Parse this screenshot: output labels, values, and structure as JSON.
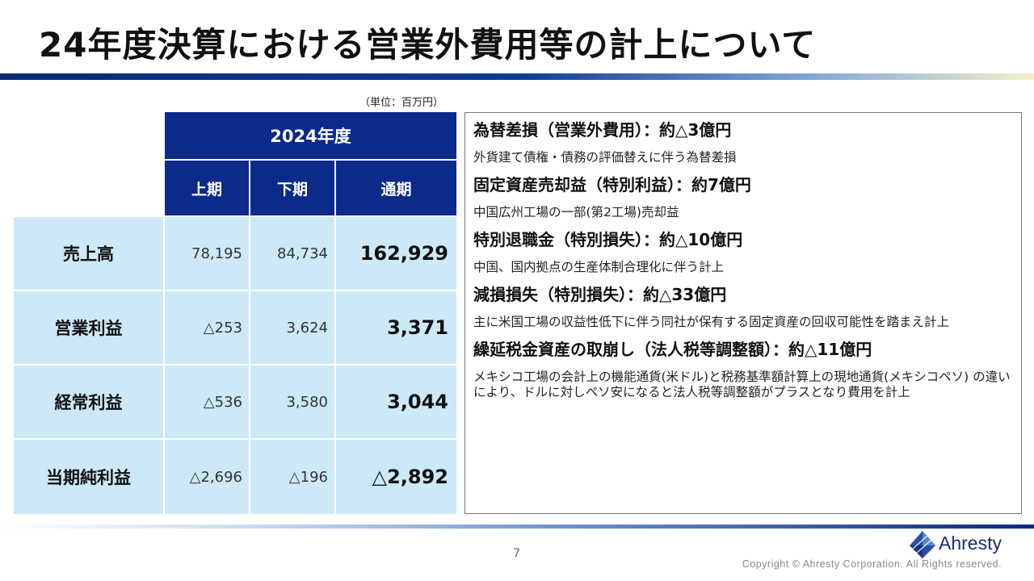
{
  "title": "24年度決算における営業外費用等の計上について",
  "unit_note": "（単位：百万円）",
  "table": {
    "year_header": "2024年度",
    "columns": [
      "上期",
      "下期",
      "通期"
    ],
    "rows": [
      {
        "label": "売上高",
        "h1": "78,195",
        "h2": "84,734",
        "total": "162,929"
      },
      {
        "label": "営業利益",
        "h1": "△253",
        "h2": "3,624",
        "total": "3,371"
      },
      {
        "label": "経常利益",
        "h1": "△536",
        "h2": "3,580",
        "total": "3,044"
      },
      {
        "label": "当期純利益",
        "h1": "△2,696",
        "h2": "△196",
        "total": "△2,892"
      }
    ]
  },
  "items": [
    {
      "head": "為替差損（営業外費用）：約△3億円",
      "desc": "外貨建て債権・債務の評価替えに伴う為替差損"
    },
    {
      "head": "固定資産売却益（特別利益）：約7億円",
      "desc": "中国広州工場の一部(第2工場)売却益"
    },
    {
      "head": "特別退職金（特別損失）：約△10億円",
      "desc": "中国、国内拠点の生産体制合理化に伴う計上"
    },
    {
      "head": "減損損失（特別損失）：約△33億円",
      "desc": "主に米国工場の収益性低下に伴う同社が保有する固定資産の回収可能性を踏まえ計上"
    },
    {
      "head": "繰延税金資産の取崩し（法人税等調整額）：約△11億円",
      "desc": "メキシコ工場の会計上の機能通貨(米ドル)と税務基準額計算上の現地通貨(メキシコペソ) の違いにより、ドルに対しペソ安になると法人税等調整額がプラスとなり費用を計上"
    }
  ],
  "footer": {
    "page_number": "7",
    "logo_text": "Ahresty",
    "copyright": "Copyright © Ahresty Corporation. All Rights reserved."
  },
  "colors": {
    "header_bg": "#0b2a8a",
    "cell_bg": "#cde9f7",
    "logo": "#1b2f6b"
  }
}
